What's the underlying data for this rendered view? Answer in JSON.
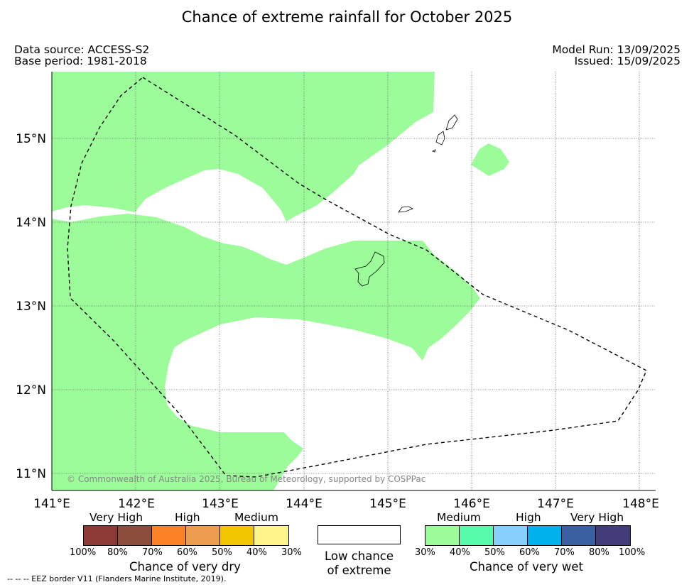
{
  "title": "Chance of extreme rainfall for October 2025",
  "meta": {
    "data_source": "Data source: ACCESS-S2",
    "base_period": "Base period: 1981-2018",
    "model_run": "Model Run: 13/09/2025",
    "issued": "Issued: 15/09/2025"
  },
  "map": {
    "lon_ticks": [
      "141°E",
      "142°E",
      "143°E",
      "144°E",
      "145°E",
      "146°E",
      "147°E",
      "148°E"
    ],
    "lat_ticks": [
      "15°N",
      "14°N",
      "13°N",
      "12°N",
      "11°N"
    ],
    "copyright": "© Commonwealth of Australia 2025, Bureau of Meteorology, supported by COSPPac",
    "wet_medium_color": "#9dfc9a",
    "eez_line": "dashed black"
  },
  "legend": {
    "dry": {
      "categories": [
        "Very High",
        "High",
        "Medium"
      ],
      "colors": [
        "#8c3a33",
        "#8d4d3c",
        "#fb8126",
        "#ec9d4f",
        "#f1c600",
        "#fdf48c"
      ],
      "ticks": [
        "100%",
        "80%",
        "70%",
        "60%",
        "50%",
        "40%",
        "30%"
      ],
      "title": "Chance of very dry"
    },
    "neutral": {
      "line1": "Low chance",
      "line2": "of extreme"
    },
    "wet": {
      "categories": [
        "Medium",
        "High",
        "Very High"
      ],
      "colors": [
        "#9dfc9a",
        "#55fba8",
        "#87d0fb",
        "#00b1ec",
        "#3b60a1",
        "#423c7b"
      ],
      "ticks": [
        "30%",
        "40%",
        "50%",
        "60%",
        "70%",
        "80%",
        "100%"
      ],
      "title": "Chance of very wet"
    }
  },
  "footnote": "--  --  -- EEZ border V11 (Flanders Marine Institute, 2019)."
}
